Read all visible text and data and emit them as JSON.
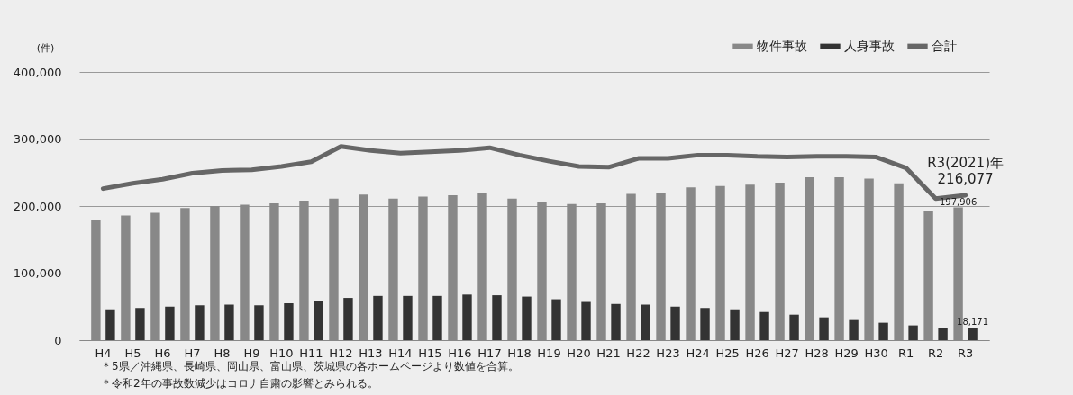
{
  "chart_data": {
    "type": "bar",
    "ylabel": "(件)",
    "categories": [
      "H4",
      "H5",
      "H6",
      "H7",
      "H8",
      "H9",
      "H10",
      "H11",
      "H12",
      "H13",
      "H14",
      "H15",
      "H16",
      "H17",
      "H18",
      "H19",
      "H20",
      "H21",
      "H22",
      "H23",
      "H24",
      "H25",
      "H26",
      "H27",
      "H28",
      "H29",
      "H30",
      "R1",
      "R2",
      "R3"
    ],
    "series": [
      {
        "name": "物件事故",
        "type": "bar",
        "color": "#888888",
        "values": [
          180000,
          186000,
          190000,
          197000,
          200000,
          202000,
          204000,
          208000,
          211000,
          217000,
          211000,
          214000,
          216000,
          220000,
          211000,
          206000,
          203000,
          204000,
          218000,
          220000,
          228000,
          230000,
          232000,
          235000,
          243000,
          243000,
          241000,
          234000,
          193000,
          197906
        ],
        "value_labels": [
          null,
          null,
          null,
          null,
          null,
          null,
          null,
          null,
          null,
          null,
          null,
          null,
          null,
          null,
          null,
          null,
          null,
          null,
          null,
          null,
          null,
          null,
          null,
          null,
          null,
          null,
          null,
          null,
          null,
          "197,906"
        ]
      },
      {
        "name": "人身事故",
        "type": "bar",
        "color": "#333333",
        "values": [
          46000,
          48000,
          50000,
          52000,
          53000,
          52000,
          55000,
          58000,
          63000,
          66000,
          66000,
          66000,
          68000,
          67000,
          65000,
          61000,
          57000,
          54000,
          53000,
          50000,
          48000,
          46000,
          42000,
          38000,
          34000,
          30000,
          26000,
          22000,
          18000,
          18171
        ],
        "value_labels": [
          null,
          null,
          null,
          null,
          null,
          null,
          null,
          null,
          null,
          null,
          null,
          null,
          null,
          null,
          null,
          null,
          null,
          null,
          null,
          null,
          null,
          null,
          null,
          null,
          null,
          null,
          null,
          null,
          null,
          "18,171"
        ]
      },
      {
        "name": "合計",
        "type": "line",
        "color": "#666666",
        "values": [
          226000,
          234000,
          240000,
          249000,
          253000,
          254000,
          259000,
          266000,
          289000,
          283000,
          279000,
          281000,
          283000,
          287000,
          276000,
          267000,
          259000,
          258000,
          271000,
          271000,
          276000,
          276000,
          274000,
          273000,
          274000,
          274000,
          273000,
          257000,
          211000,
          216077
        ],
        "value_labels": [
          null,
          null,
          null,
          null,
          null,
          null,
          null,
          null,
          null,
          null,
          null,
          null,
          null,
          null,
          null,
          null,
          null,
          null,
          null,
          null,
          null,
          null,
          null,
          null,
          null,
          null,
          null,
          null,
          null,
          "216,077"
        ]
      }
    ],
    "ylim": [
      0,
      400000
    ],
    "yticks": [
      0,
      {
        "value": 100000,
        "label": "100,000"
      },
      {
        "value": 200000,
        "label": "200,000"
      },
      {
        "value": 300000,
        "label": "300,000"
      },
      {
        "value": 400000,
        "label": "400,000"
      }
    ],
    "grid": "y",
    "legend": "top right",
    "annotations": [
      {
        "text": "R3(2021)年",
        "x": "R3",
        "y": 216077
      },
      "＊5県／沖縄県、長崎県、岡山県、富山県、茨城県の各ホームページより数値を合算。",
      "＊令和2年の事故数減少はコロナ自粛の影響とみられる。"
    ]
  }
}
